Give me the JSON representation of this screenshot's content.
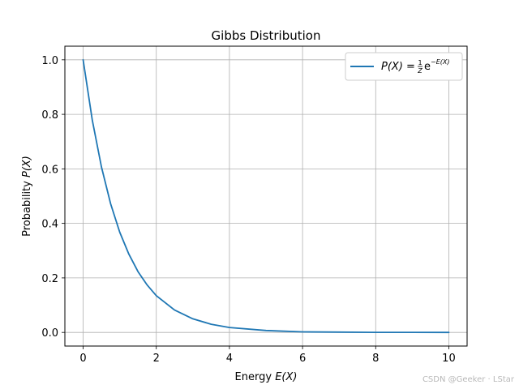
{
  "chart_data": {
    "type": "line",
    "title": "Gibbs Distribution",
    "xlabel": {
      "prefix": "Energy ",
      "math": "E(X)"
    },
    "ylabel": {
      "prefix": "Probability ",
      "math": "P(X)"
    },
    "xlim": [
      -0.5,
      10.5
    ],
    "ylim": [
      -0.05,
      1.05
    ],
    "xticks": [
      0,
      2,
      4,
      6,
      8,
      10
    ],
    "yticks": [
      0.0,
      0.2,
      0.4,
      0.6,
      0.8,
      1.0
    ],
    "xtick_labels": [
      "0",
      "2",
      "4",
      "6",
      "8",
      "10"
    ],
    "ytick_labels": [
      "0.0",
      "0.2",
      "0.4",
      "0.6",
      "0.8",
      "1.0"
    ],
    "grid": true,
    "legend_position": "top-right",
    "series": [
      {
        "name": "P(X) = 1/Z e^(−E(X))",
        "color": "#1f77b4",
        "x": [
          0,
          0.25,
          0.5,
          0.75,
          1,
          1.25,
          1.5,
          1.75,
          2,
          2.5,
          3,
          3.5,
          4,
          5,
          6,
          7,
          8,
          9,
          10
        ],
        "y": [
          1.0,
          0.779,
          0.607,
          0.472,
          0.368,
          0.287,
          0.223,
          0.174,
          0.135,
          0.082,
          0.05,
          0.03,
          0.018,
          0.007,
          0.002,
          0.001,
          0.0003,
          0.0001,
          5e-05
        ]
      }
    ]
  },
  "legend": {
    "lhs": "P(X)",
    "frac_num": "1",
    "frac_den": "Z",
    "base": "e",
    "exponent": "−E(X)"
  },
  "watermark": "CSDN @Geeker · LStar"
}
